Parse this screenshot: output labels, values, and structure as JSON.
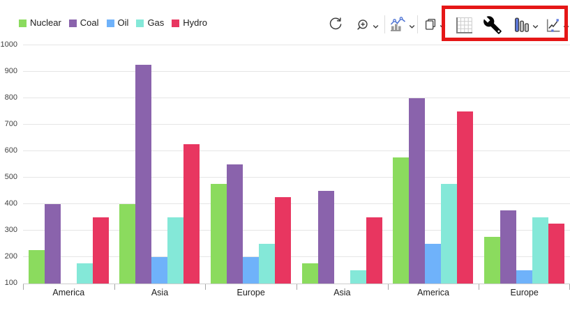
{
  "toolbar": {
    "buttons": [
      {
        "id": "refresh",
        "icon": "refresh-icon",
        "dropdown": false,
        "highlighted": false
      },
      {
        "id": "zoom",
        "icon": "zoom-in-icon",
        "dropdown": true,
        "highlighted": false
      },
      {
        "id": "chart-type",
        "icon": "combo-chart-icon",
        "dropdown": true,
        "highlighted": false
      },
      {
        "id": "copy",
        "icon": "copy-icon",
        "dropdown": true,
        "highlighted": false
      },
      {
        "id": "grid-axes",
        "icon": "grid-axes-icon",
        "dropdown": false,
        "highlighted": true
      },
      {
        "id": "settings",
        "icon": "wrench-icon",
        "dropdown": false,
        "highlighted": true
      },
      {
        "id": "column-chart",
        "icon": "column-chart-icon",
        "dropdown": true,
        "highlighted": true
      },
      {
        "id": "trendline",
        "icon": "trendline-chart-icon",
        "dropdown": true,
        "highlighted": true
      }
    ],
    "highlight_box_color": "#E51717"
  },
  "chart_data": {
    "type": "bar",
    "title": "",
    "categories": [
      "America",
      "Asia",
      "Europe",
      "Asia",
      "America",
      "Europe"
    ],
    "series": [
      {
        "name": "Nuclear",
        "color": "#8BDB5E",
        "values": [
          225,
          400,
          475,
          175,
          575,
          275
        ]
      },
      {
        "name": "Coal",
        "color": "#8A63AC",
        "values": [
          400,
          925,
          550,
          450,
          800,
          375
        ]
      },
      {
        "name": "Oil",
        "color": "#6FB2FA",
        "values": [
          null,
          200,
          200,
          null,
          250,
          150
        ]
      },
      {
        "name": "Gas",
        "color": "#84E8D8",
        "values": [
          175,
          350,
          250,
          150,
          475,
          350
        ]
      },
      {
        "name": "Hydro",
        "color": "#E83660",
        "values": [
          350,
          625,
          425,
          350,
          750,
          325
        ]
      }
    ],
    "ylim": [
      100,
      1000
    ],
    "yticks": [
      100,
      200,
      300,
      400,
      500,
      600,
      700,
      800,
      900,
      1000
    ],
    "grid": "horizontal",
    "legend_position": "top-left",
    "axis_colors": {
      "gridline": "#e5e5e5",
      "axis_line": "#cdcdcd",
      "tick": "#a6a6a6"
    }
  }
}
